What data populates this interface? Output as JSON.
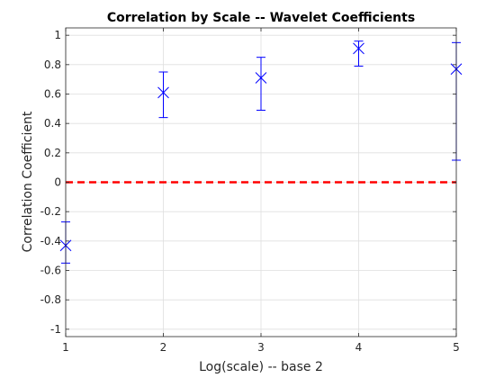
{
  "chart_data": {
    "type": "scatter",
    "title": "Correlation by Scale -- Wavelet Coefficients",
    "xlabel": "Log(scale) -- base 2",
    "ylabel": "Correlation Coefficient",
    "xlim": [
      1,
      5
    ],
    "ylim": [
      -1.05,
      1.05
    ],
    "x_ticks": [
      "1",
      "2",
      "3",
      "4",
      "5"
    ],
    "x_tick_values": [
      1,
      2,
      3,
      4,
      5
    ],
    "y_ticks": [
      "-1",
      "-0.8",
      "-0.6",
      "-0.4",
      "-0.2",
      "0",
      "0.2",
      "0.4",
      "0.6",
      "0.8",
      "1"
    ],
    "y_tick_values": [
      -1,
      -0.8,
      -0.6,
      -0.4,
      -0.2,
      0,
      0.2,
      0.4,
      0.6,
      0.8,
      1
    ],
    "grid": true,
    "marker": "x",
    "marker_color": "#0000ff",
    "reference_line": {
      "y": 0,
      "color": "#ff0000",
      "style": "dashed"
    },
    "series": [
      {
        "x": [
          1,
          2,
          3,
          4,
          5
        ],
        "y": [
          -0.43,
          0.61,
          0.71,
          0.91,
          0.77
        ],
        "lower": [
          -0.55,
          0.44,
          0.49,
          0.79,
          0.15
        ],
        "upper": [
          -0.27,
          0.75,
          0.85,
          0.96,
          0.95
        ]
      }
    ]
  }
}
